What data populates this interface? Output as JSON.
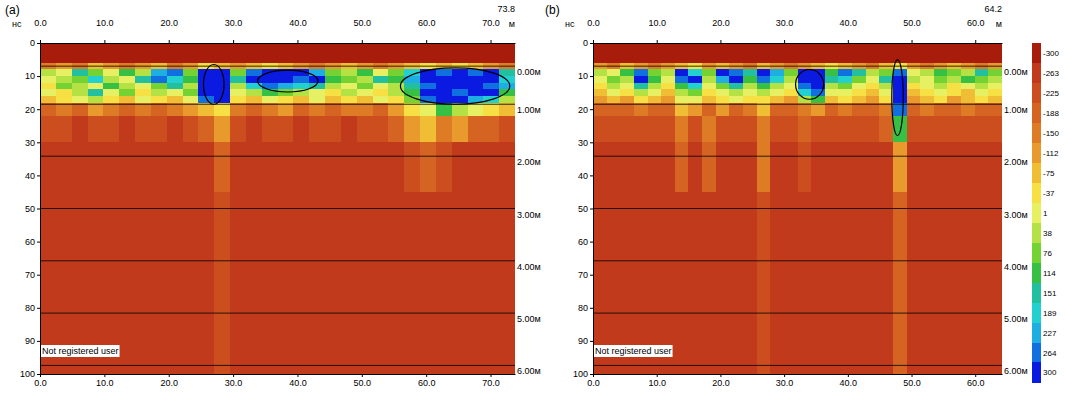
{
  "chart_data": [
    {
      "type": "heatmap",
      "title": "(a)",
      "x_unit": "м",
      "y_unit": "нс",
      "watermark": "Not registered user",
      "xlim": [
        0,
        73.8
      ],
      "ylim": [
        0,
        100
      ],
      "xticks": [
        {
          "value": 0,
          "label": "0.0"
        },
        {
          "value": 10,
          "label": "10.0"
        },
        {
          "value": 20,
          "label": "20.0"
        },
        {
          "value": 30,
          "label": "30.0"
        },
        {
          "value": 40,
          "label": "40.0"
        },
        {
          "value": 50,
          "label": "50.0"
        },
        {
          "value": 60,
          "label": "60.0"
        },
        {
          "value": 70,
          "label": "70.0"
        }
      ],
      "yticks": [
        0,
        10,
        20,
        30,
        40,
        50,
        60,
        70,
        80,
        90,
        100
      ],
      "depth_ticks": [
        {
          "value": 7,
          "label": "0.00м"
        },
        {
          "value": 18.5,
          "label": "1.00м"
        },
        {
          "value": 34.2,
          "label": "2.00м"
        },
        {
          "value": 50,
          "label": "3.00м"
        },
        {
          "value": 65.8,
          "label": "4.00м"
        },
        {
          "value": 81.6,
          "label": "5.00м"
        },
        {
          "value": 97.4,
          "label": "6.00м"
        }
      ],
      "grid": true,
      "x_edges": [
        0,
        2.46,
        4.92,
        7.38,
        9.84,
        12.3,
        14.76,
        17.22,
        19.68,
        22.14,
        24.6,
        27.06,
        29.52,
        31.98,
        34.44,
        36.9,
        39.36,
        41.82,
        44.28,
        46.74,
        49.2,
        51.66,
        54.12,
        56.58,
        59.04,
        61.5,
        63.96,
        66.42,
        68.88,
        71.34,
        73.8
      ],
      "t_edges": [
        0,
        6,
        8,
        10,
        12,
        14,
        16,
        18,
        22,
        30,
        45,
        100
      ],
      "z": [
        [
          -300,
          -300,
          -300,
          -300,
          -300,
          -300,
          -300,
          -300,
          -300,
          -300,
          -300,
          -300,
          -300,
          -300,
          -300,
          -300,
          -300,
          -300,
          -300,
          -300,
          -300,
          -300,
          -300,
          -300,
          -300,
          -300,
          -300,
          -300,
          -300,
          -300
        ],
        [
          -150,
          -112,
          -150,
          -75,
          -112,
          -150,
          -112,
          -75,
          -150,
          -112,
          -37,
          -75,
          -112,
          -75,
          -37,
          -75,
          -112,
          -150,
          -112,
          -75,
          -112,
          -150,
          -112,
          -75,
          -37,
          -75,
          -37,
          -75,
          -112,
          -150
        ],
        [
          38,
          1,
          151,
          76,
          1,
          114,
          38,
          227,
          264,
          76,
          300,
          300,
          76,
          264,
          300,
          300,
          300,
          227,
          76,
          38,
          114,
          1,
          76,
          189,
          300,
          264,
          300,
          264,
          300,
          151
        ],
        [
          1,
          38,
          76,
          189,
          38,
          1,
          151,
          264,
          189,
          114,
          300,
          300,
          151,
          300,
          300,
          300,
          264,
          300,
          114,
          76,
          38,
          151,
          114,
          227,
          300,
          300,
          300,
          300,
          300,
          189
        ],
        [
          -37,
          76,
          38,
          1,
          114,
          38,
          1,
          76,
          151,
          38,
          300,
          300,
          38,
          189,
          264,
          227,
          189,
          151,
          38,
          1,
          76,
          1,
          38,
          151,
          264,
          300,
          300,
          300,
          264,
          227
        ],
        [
          1,
          -37,
          38,
          151,
          1,
          76,
          -37,
          38,
          1,
          76,
          300,
          300,
          1,
          38,
          114,
          76,
          38,
          1,
          -37,
          38,
          1,
          -37,
          38,
          114,
          300,
          300,
          264,
          300,
          300,
          114
        ],
        [
          -75,
          -37,
          1,
          38,
          -37,
          -75,
          1,
          -37,
          -75,
          1,
          264,
          300,
          -37,
          -75,
          1,
          -37,
          -75,
          1,
          -75,
          -37,
          -75,
          1,
          -37,
          76,
          264,
          300,
          300,
          227,
          189,
          38
        ],
        [
          -188,
          -150,
          -188,
          -112,
          -150,
          -188,
          -150,
          -188,
          -150,
          -112,
          -75,
          -37,
          -150,
          -188,
          -150,
          -112,
          -188,
          -150,
          -188,
          -150,
          -150,
          -188,
          -112,
          -37,
          1,
          114,
          38,
          1,
          -37,
          -75
        ],
        [
          -225,
          -225,
          -263,
          -225,
          -225,
          -263,
          -225,
          -225,
          -263,
          -225,
          -188,
          -112,
          -225,
          -263,
          -225,
          -225,
          -263,
          -225,
          -225,
          -263,
          -225,
          -225,
          -188,
          -112,
          -75,
          -150,
          -112,
          -188,
          -188,
          -225
        ],
        [
          -263,
          -263,
          -263,
          -263,
          -263,
          -263,
          -263,
          -263,
          -263,
          -263,
          -263,
          -188,
          -263,
          -263,
          -263,
          -263,
          -263,
          -263,
          -263,
          -263,
          -263,
          -263,
          -263,
          -225,
          -188,
          -225,
          -263,
          -263,
          -263,
          -263
        ],
        [
          -263,
          -263,
          -263,
          -263,
          -263,
          -263,
          -263,
          -263,
          -263,
          -263,
          -263,
          -225,
          -263,
          -263,
          -263,
          -263,
          -263,
          -263,
          -263,
          -263,
          -263,
          -263,
          -263,
          -263,
          -263,
          -263,
          -263,
          -263,
          -263,
          -263
        ]
      ],
      "ellipses": [
        {
          "cx": 27,
          "ct": 12.5,
          "rx": 1.6,
          "rt": 6
        },
        {
          "cx": 38.5,
          "ct": 11.5,
          "rx": 4.7,
          "rt": 3.3
        },
        {
          "cx": 64.5,
          "ct": 13,
          "rx": 8.5,
          "rt": 5.5
        }
      ]
    },
    {
      "type": "heatmap",
      "title": "(b)",
      "x_unit": "м",
      "y_unit": "нс",
      "watermark": "Not registered user",
      "xlim": [
        0,
        64.2
      ],
      "ylim": [
        0,
        100
      ],
      "xticks": [
        {
          "value": 0,
          "label": "0.0"
        },
        {
          "value": 10,
          "label": "10.0"
        },
        {
          "value": 20,
          "label": "20.0"
        },
        {
          "value": 30,
          "label": "30.0"
        },
        {
          "value": 40,
          "label": "40.0"
        },
        {
          "value": 50,
          "label": "50.0"
        },
        {
          "value": 60,
          "label": "60.0"
        }
      ],
      "yticks": [
        0,
        10,
        20,
        30,
        40,
        50,
        60,
        70,
        80,
        90,
        100
      ],
      "depth_ticks": [
        {
          "value": 7,
          "label": "0.00м"
        },
        {
          "value": 18.5,
          "label": "1.00м"
        },
        {
          "value": 34.2,
          "label": "2.00м"
        },
        {
          "value": 50,
          "label": "3.00м"
        },
        {
          "value": 65.8,
          "label": "4.00м"
        },
        {
          "value": 81.6,
          "label": "5.00м"
        },
        {
          "value": 97.4,
          "label": "6.00м"
        }
      ],
      "grid": true,
      "x_edges": [
        0,
        2.14,
        4.28,
        6.42,
        8.56,
        10.7,
        12.84,
        14.98,
        17.12,
        19.26,
        21.4,
        23.54,
        25.68,
        27.82,
        29.96,
        32.1,
        34.24,
        36.38,
        38.52,
        40.66,
        42.8,
        44.94,
        47.08,
        49.22,
        51.36,
        53.5,
        55.64,
        57.78,
        59.92,
        62.06,
        64.2
      ],
      "t_edges": [
        0,
        6,
        8,
        10,
        12,
        14,
        16,
        18,
        22,
        30,
        45,
        100
      ],
      "z": [
        [
          -300,
          -300,
          -300,
          -300,
          -300,
          -300,
          -300,
          -300,
          -300,
          -300,
          -300,
          -300,
          -300,
          -300,
          -300,
          -300,
          -300,
          -300,
          -300,
          -300,
          -300,
          -300,
          -300,
          -300,
          -300,
          -300,
          -300,
          -300,
          -300,
          -300
        ],
        [
          -112,
          -150,
          -75,
          -112,
          -150,
          -112,
          -75,
          -37,
          -112,
          -75,
          -112,
          -150,
          -75,
          -112,
          -150,
          -112,
          -75,
          -37,
          -75,
          -112,
          -150,
          -75,
          -37,
          -112,
          -150,
          -112,
          -75,
          -112,
          -150,
          -112
        ],
        [
          38,
          1,
          114,
          264,
          76,
          38,
          300,
          189,
          76,
          300,
          264,
          151,
          300,
          227,
          76,
          300,
          300,
          114,
          264,
          151,
          38,
          76,
          264,
          1,
          38,
          114,
          76,
          38,
          151,
          76
        ],
        [
          1,
          76,
          38,
          300,
          114,
          1,
          264,
          300,
          38,
          227,
          300,
          114,
          264,
          189,
          38,
          300,
          300,
          151,
          189,
          76,
          1,
          151,
          300,
          38,
          1,
          76,
          38,
          114,
          76,
          38
        ],
        [
          -37,
          38,
          1,
          151,
          38,
          -37,
          114,
          189,
          1,
          76,
          151,
          38,
          114,
          38,
          1,
          264,
          300,
          38,
          76,
          1,
          -37,
          38,
          300,
          -37,
          1,
          38,
          -37,
          1,
          38,
          1
        ],
        [
          -75,
          1,
          -37,
          38,
          1,
          -75,
          38,
          76,
          -37,
          1,
          38,
          1,
          38,
          1,
          -37,
          189,
          264,
          1,
          1,
          -37,
          -75,
          1,
          300,
          -75,
          -37,
          1,
          -37,
          -75,
          1,
          -37
        ],
        [
          -112,
          -75,
          -112,
          -37,
          -75,
          -112,
          1,
          1,
          -75,
          -37,
          1,
          -37,
          -37,
          -75,
          -112,
          38,
          114,
          -75,
          -37,
          -75,
          -112,
          -37,
          300,
          -112,
          -75,
          -37,
          -112,
          -75,
          -37,
          -75
        ],
        [
          -188,
          -188,
          -188,
          -150,
          -188,
          -188,
          -75,
          -112,
          -188,
          -112,
          -188,
          -150,
          -75,
          -188,
          -188,
          -150,
          -112,
          -188,
          -150,
          -188,
          -188,
          -150,
          264,
          -188,
          -150,
          -188,
          -188,
          -150,
          -188,
          -188
        ],
        [
          -225,
          -225,
          -225,
          -225,
          -225,
          -225,
          -150,
          -225,
          -150,
          -225,
          -225,
          -225,
          -150,
          -225,
          -225,
          -188,
          -225,
          -225,
          -225,
          -225,
          -225,
          -188,
          114,
          -225,
          -225,
          -225,
          -225,
          -225,
          -225,
          -225
        ],
        [
          -263,
          -263,
          -263,
          -263,
          -263,
          -263,
          -188,
          -263,
          -188,
          -263,
          -263,
          -263,
          -150,
          -263,
          -263,
          -225,
          -263,
          -263,
          -263,
          -263,
          -263,
          -263,
          -112,
          -263,
          -263,
          -263,
          -263,
          -263,
          -263,
          -263
        ],
        [
          -263,
          -263,
          -263,
          -263,
          -263,
          -263,
          -263,
          -263,
          -263,
          -263,
          -263,
          -263,
          -225,
          -263,
          -263,
          -263,
          -263,
          -263,
          -263,
          -263,
          -263,
          -263,
          -188,
          -263,
          -263,
          -263,
          -263,
          -263,
          -263,
          -263
        ]
      ],
      "ellipses": [
        {
          "cx": 34,
          "ct": 12.5,
          "rx": 2.2,
          "rt": 4.5
        },
        {
          "cx": 47.8,
          "ct": 16.5,
          "rx": 0.9,
          "rt": 11.5
        }
      ],
      "colorbar": {
        "range": [
          -300,
          300
        ],
        "ticks": [
          -300,
          -263,
          -225,
          -188,
          -150,
          -112,
          -75,
          -37,
          1,
          38,
          76,
          114,
          151,
          189,
          227,
          264,
          300
        ],
        "colors": [
          "#a81c0c",
          "#c23a1c",
          "#cc4e1e",
          "#d56422",
          "#de7c26",
          "#e89a2c",
          "#f0be34",
          "#f6e044",
          "#e6f062",
          "#b4e244",
          "#74d232",
          "#36c044",
          "#22c09e",
          "#22d0d0",
          "#1eaee2",
          "#1070e0",
          "#0a1ae0"
        ]
      }
    }
  ]
}
